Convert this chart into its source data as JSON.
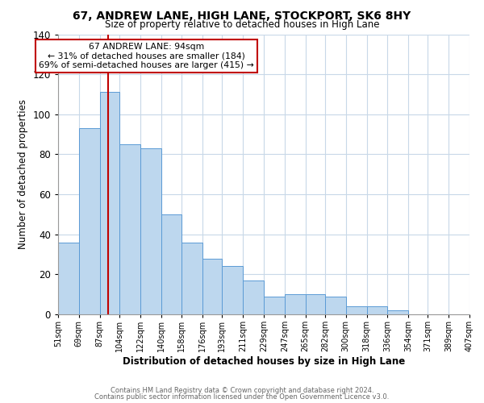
{
  "title": "67, ANDREW LANE, HIGH LANE, STOCKPORT, SK6 8HY",
  "subtitle": "Size of property relative to detached houses in High Lane",
  "xlabel": "Distribution of detached houses by size in High Lane",
  "ylabel": "Number of detached properties",
  "footnote1": "Contains HM Land Registry data © Crown copyright and database right 2024.",
  "footnote2": "Contains public sector information licensed under the Open Government Licence v3.0.",
  "bin_labels": [
    "51sqm",
    "69sqm",
    "87sqm",
    "104sqm",
    "122sqm",
    "140sqm",
    "158sqm",
    "176sqm",
    "193sqm",
    "211sqm",
    "229sqm",
    "247sqm",
    "265sqm",
    "282sqm",
    "300sqm",
    "318sqm",
    "336sqm",
    "354sqm",
    "371sqm",
    "389sqm",
    "407sqm"
  ],
  "bar_values": [
    36,
    93,
    111,
    85,
    83,
    50,
    36,
    28,
    24,
    17,
    9,
    10,
    10,
    9,
    4,
    4,
    2,
    0,
    0,
    0,
    1
  ],
  "bar_color": "#bdd7ee",
  "bar_edge_color": "#5b9bd5",
  "property_line_x": 94,
  "property_line_color": "#c00000",
  "annotation_title": "67 ANDREW LANE: 94sqm",
  "annotation_line1": "← 31% of detached houses are smaller (184)",
  "annotation_line2": "69% of semi-detached houses are larger (415) →",
  "annotation_box_color": "#ffffff",
  "annotation_box_edge_color": "#c00000",
  "ylim": [
    0,
    140
  ],
  "yticks": [
    0,
    20,
    40,
    60,
    80,
    100,
    120,
    140
  ],
  "bin_edges": [
    51,
    69,
    87,
    104,
    122,
    140,
    158,
    176,
    193,
    211,
    229,
    247,
    265,
    282,
    300,
    318,
    336,
    354,
    371,
    389,
    407
  ],
  "background_color": "#ffffff",
  "grid_color": "#c8d8e8"
}
